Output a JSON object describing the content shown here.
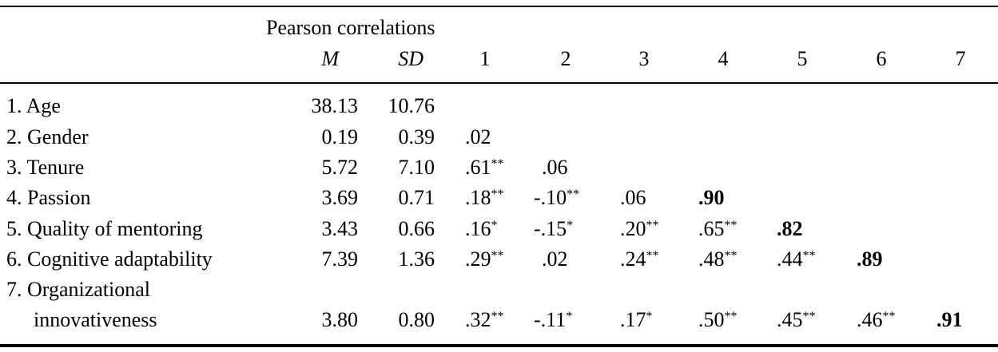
{
  "header": {
    "group_label": "Pearson correlations",
    "columns": [
      "M",
      "SD",
      "1",
      "2",
      "3",
      "4",
      "5",
      "6",
      "7"
    ]
  },
  "rows": [
    {
      "label": "1. Age",
      "M": "38.13",
      "SD": "10.76",
      "corr": []
    },
    {
      "label": "2. Gender",
      "M": "0.19",
      "SD": "0.39",
      "corr": [
        {
          "v": ".02",
          "sig": ""
        }
      ]
    },
    {
      "label": "3. Tenure",
      "M": "5.72",
      "SD": "7.10",
      "corr": [
        {
          "v": ".61",
          "sig": "**"
        },
        {
          "v": ".06",
          "sig": ""
        }
      ]
    },
    {
      "label": "4. Passion",
      "M": "3.69",
      "SD": "0.71",
      "corr": [
        {
          "v": ".18",
          "sig": "**"
        },
        {
          "v": "-.10",
          "sig": "**"
        },
        {
          "v": ".06",
          "sig": ""
        },
        {
          "v": ".90",
          "sig": "",
          "diagonal": true
        }
      ]
    },
    {
      "label": "5. Quality of mentoring",
      "M": "3.43",
      "SD": "0.66",
      "corr": [
        {
          "v": ".16",
          "sig": "*"
        },
        {
          "v": "-.15",
          "sig": "*"
        },
        {
          "v": ".20",
          "sig": "**"
        },
        {
          "v": ".65",
          "sig": "**"
        },
        {
          "v": ".82",
          "sig": "",
          "diagonal": true
        }
      ]
    },
    {
      "label": "6. Cognitive adaptability",
      "M": "7.39",
      "SD": "1.36",
      "corr": [
        {
          "v": ".29",
          "sig": "**"
        },
        {
          "v": ".02",
          "sig": ""
        },
        {
          "v": ".24",
          "sig": "**"
        },
        {
          "v": ".48",
          "sig": "**"
        },
        {
          "v": ".44",
          "sig": "**"
        },
        {
          "v": ".89",
          "sig": "",
          "diagonal": true
        }
      ]
    },
    {
      "label": "7. Organizational",
      "label_cont": "innovativeness",
      "M": "3.80",
      "SD": "0.80",
      "corr": [
        {
          "v": ".32",
          "sig": "**"
        },
        {
          "v": "-.11",
          "sig": "*"
        },
        {
          "v": ".17",
          "sig": "*"
        },
        {
          "v": ".50",
          "sig": "**"
        },
        {
          "v": ".45",
          "sig": "**"
        },
        {
          "v": ".46",
          "sig": "**"
        },
        {
          "v": ".91",
          "sig": "",
          "diagonal": true
        }
      ]
    }
  ]
}
